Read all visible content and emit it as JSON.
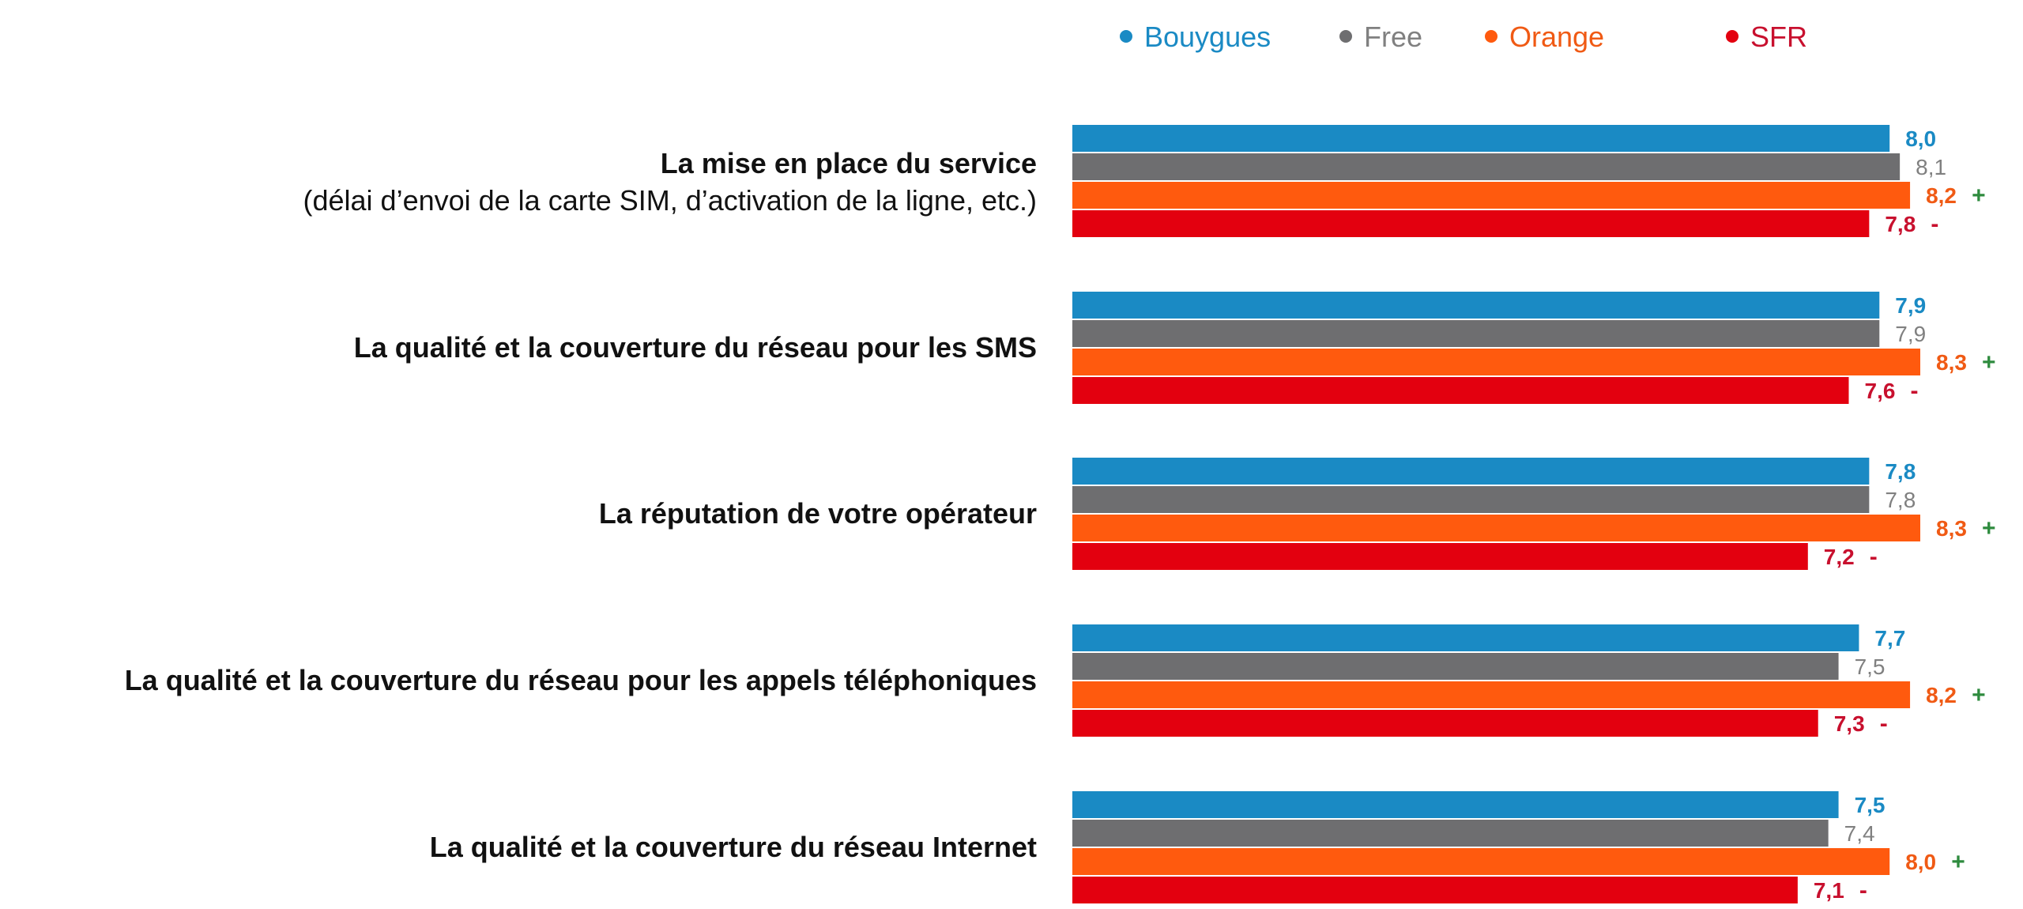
{
  "chart_data": {
    "type": "bar",
    "orientation": "horizontal",
    "legend_placement": "top",
    "grid": false,
    "xlim": [
      0,
      8.3
    ],
    "categories": [
      {
        "title": "La mise en place du service",
        "subtitle": "(délai d’envoi de la carte SIM, d’activation de la ligne, etc.)"
      },
      {
        "title": "La qualité et la couverture du réseau pour les SMS",
        "subtitle": ""
      },
      {
        "title": "La réputation de votre opérateur",
        "subtitle": ""
      },
      {
        "title": "La qualité et la couverture du réseau pour les appels téléphoniques",
        "subtitle": ""
      },
      {
        "title": "La qualité et la couverture du réseau Internet",
        "subtitle": ""
      }
    ],
    "series": [
      {
        "name": "Bouygues",
        "color": "#1a8ac4",
        "label_color": "#1a8ac4",
        "label_bold": true,
        "values": [
          8.0,
          7.9,
          7.8,
          7.7,
          7.5
        ],
        "labels": [
          "8,0",
          "7,9",
          "7,8",
          "7,7",
          "7,5"
        ],
        "marks": [
          "",
          "",
          "",
          "",
          ""
        ]
      },
      {
        "name": "Free",
        "color": "#6e6e70",
        "label_color": "#808080",
        "label_bold": false,
        "values": [
          8.1,
          7.9,
          7.8,
          7.5,
          7.4
        ],
        "labels": [
          "8,1",
          "7,9",
          "7,8",
          "7,5",
          "7,4"
        ],
        "marks": [
          "",
          "",
          "",
          "",
          ""
        ]
      },
      {
        "name": "Orange",
        "color": "#ff5a0e",
        "label_color": "#f05a14",
        "label_bold": true,
        "values": [
          8.2,
          8.3,
          8.3,
          8.2,
          8.0
        ],
        "labels": [
          "8,2",
          "8,3",
          "8,3",
          "8,2",
          "8,0"
        ],
        "marks": [
          "+",
          "+",
          "+",
          "+",
          "+"
        ]
      },
      {
        "name": "SFR",
        "color": "#e3000f",
        "label_color": "#c8102e",
        "label_bold": true,
        "values": [
          7.8,
          7.6,
          7.2,
          7.3,
          7.1
        ],
        "labels": [
          "7,8",
          "7,6",
          "7,2",
          "7,3",
          "7,1"
        ],
        "marks": [
          "-",
          "-",
          "-",
          "-",
          "-"
        ]
      }
    ],
    "mark_colors": {
      "+": "#2e8b3e",
      "-": "#c8102e"
    }
  }
}
